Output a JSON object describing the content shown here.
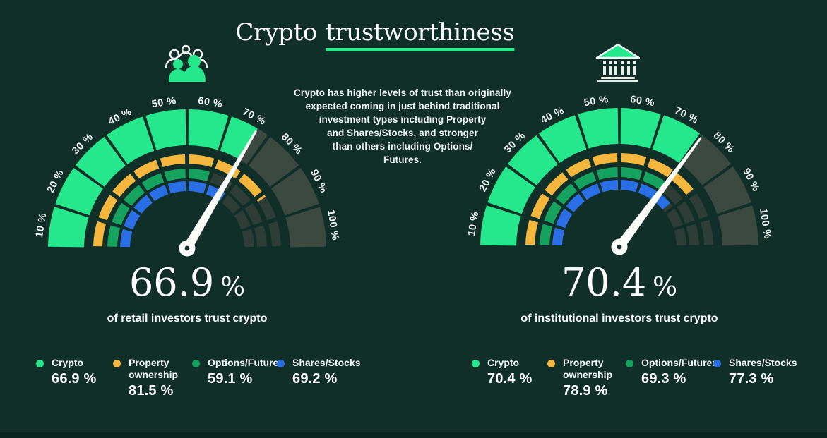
{
  "header": {
    "title_part1": "Crypto",
    "title_part2": "trustworthiness",
    "left_icon": "people-group-icon",
    "right_icon": "bank-institution-icon"
  },
  "description": {
    "lines": [
      "Crypto has higher levels of trust than originally",
      "expected coming in just behind traditional",
      "investment types including Property",
      "and Shares/Stocks, and stronger",
      "than others including Options/",
      "Futures."
    ]
  },
  "results": {
    "left": {
      "value": "66.9",
      "unit": "%",
      "caption": "of retail investors trust crypto"
    },
    "right": {
      "value": "70.4",
      "unit": "%",
      "caption": "of institutional investors trust crypto"
    }
  },
  "colors": {
    "background": "#0f2f28",
    "mint": "#25e78c",
    "orange": "#f4b63d",
    "green": "#16a35f",
    "blue": "#2b6fe6",
    "gauge_unfilled_outer": "#3b4941",
    "gauge_unfilled_inner": "#2e3d36",
    "needle": "#fdfdfa",
    "text": "#ffffff"
  },
  "chart_data": [
    {
      "type": "gauge",
      "subject": "retail investors",
      "needle_value": 66.9,
      "headline": "66.9 %",
      "caption": "of retail investors trust crypto",
      "scale": {
        "min": 0,
        "max": 100,
        "tick_step": 10,
        "tick_suffix": " %",
        "arc_degrees": 180
      },
      "series": [
        {
          "name": "Crypto",
          "value": 66.9,
          "display": "66.9 %",
          "color": "#25e78c"
        },
        {
          "name": "Property ownership",
          "value": 81.5,
          "display": "81.5 %",
          "color": "#f4b63d"
        },
        {
          "name": "Options/Futures",
          "value": 59.1,
          "display": "59.1 %",
          "color": "#16a35f"
        },
        {
          "name": "Shares/Stocks",
          "value": 69.2,
          "display": "69.2 %",
          "color": "#2b6fe6"
        }
      ]
    },
    {
      "type": "gauge",
      "subject": "institutional investors",
      "needle_value": 70.4,
      "headline": "70.4 %",
      "caption": "of institutional investors trust crypto",
      "scale": {
        "min": 0,
        "max": 100,
        "tick_step": 10,
        "tick_suffix": " %",
        "arc_degrees": 180
      },
      "series": [
        {
          "name": "Crypto",
          "value": 70.4,
          "display": "70.4 %",
          "color": "#25e78c"
        },
        {
          "name": "Property ownership",
          "value": 78.9,
          "display": "78.9 %",
          "color": "#f4b63d"
        },
        {
          "name": "Options/Futures",
          "value": 69.3,
          "display": "69.3 %",
          "color": "#16a35f"
        },
        {
          "name": "Shares/Stocks",
          "value": 77.3,
          "display": "77.3 %",
          "color": "#2b6fe6"
        }
      ]
    }
  ]
}
